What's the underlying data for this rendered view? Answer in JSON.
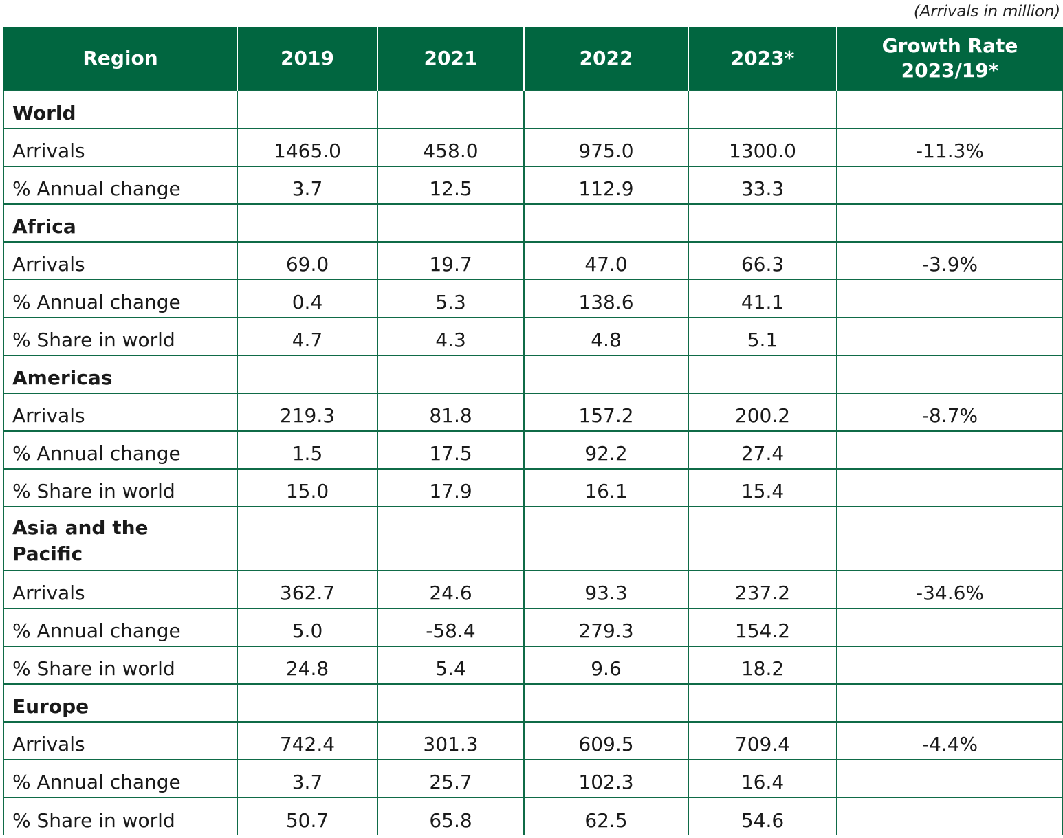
{
  "unit_note": "(Arrivals in million)",
  "header": {
    "region": "Region",
    "y2019": "2019",
    "y2021": "2021",
    "y2022": "2022",
    "y2023": "2023*",
    "growth_line1": "Growth Rate",
    "growth_line2": "2023/19*"
  },
  "rows": [
    {
      "label": "World",
      "v2019": "",
      "v2021": "",
      "v2022": "",
      "v2023": "",
      "growth": ""
    },
    {
      "label": "Arrivals",
      "v2019": "1465.0",
      "v2021": "458.0",
      "v2022": "975.0",
      "v2023": "1300.0",
      "growth": "-11.3%"
    },
    {
      "label": "% Annual change",
      "v2019": "3.7",
      "v2021": "12.5",
      "v2022": "112.9",
      "v2023": "33.3",
      "growth": ""
    },
    {
      "label": "Africa",
      "v2019": "",
      "v2021": "",
      "v2022": "",
      "v2023": "",
      "growth": ""
    },
    {
      "label": "Arrivals",
      "v2019": "69.0",
      "v2021": "19.7",
      "v2022": "47.0",
      "v2023": "66.3",
      "growth": "-3.9%"
    },
    {
      "label": "% Annual change",
      "v2019": "0.4",
      "v2021": "5.3",
      "v2022": "138.6",
      "v2023": "41.1",
      "growth": ""
    },
    {
      "label": "% Share in world",
      "v2019": "4.7",
      "v2021": "4.3",
      "v2022": "4.8",
      "v2023": "5.1",
      "growth": ""
    },
    {
      "label": "Americas",
      "v2019": "",
      "v2021": "",
      "v2022": "",
      "v2023": "",
      "growth": ""
    },
    {
      "label": "Arrivals",
      "v2019": "219.3",
      "v2021": "81.8",
      "v2022": "157.2",
      "v2023": "200.2",
      "growth": "-8.7%"
    },
    {
      "label": "% Annual change",
      "v2019": "1.5",
      "v2021": "17.5",
      "v2022": "92.2",
      "v2023": "27.4",
      "growth": ""
    },
    {
      "label": "% Share in world",
      "v2019": "15.0",
      "v2021": "17.9",
      "v2022": "16.1",
      "v2023": "15.4",
      "growth": ""
    },
    {
      "label_line1": "Asia and the",
      "label_line2": "Pacific",
      "v2019": "",
      "v2021": "",
      "v2022": "",
      "v2023": "",
      "growth": ""
    },
    {
      "label": "Arrivals",
      "v2019": "362.7",
      "v2021": "24.6",
      "v2022": "93.3",
      "v2023": "237.2",
      "growth": "-34.6%"
    },
    {
      "label": "% Annual change",
      "v2019": "5.0",
      "v2021": "-58.4",
      "v2022": "279.3",
      "v2023": "154.2",
      "growth": ""
    },
    {
      "label": "% Share in world",
      "v2019": "24.8",
      "v2021": "5.4",
      "v2022": "9.6",
      "v2023": "18.2",
      "growth": ""
    },
    {
      "label": "Europe",
      "v2019": "",
      "v2021": "",
      "v2022": "",
      "v2023": "",
      "growth": ""
    },
    {
      "label": "Arrivals",
      "v2019": "742.4",
      "v2021": "301.3",
      "v2022": "609.5",
      "v2023": "709.4",
      "growth": "-4.4%"
    },
    {
      "label": "% Annual change",
      "v2019": "3.7",
      "v2021": "25.7",
      "v2022": "102.3",
      "v2023": "16.4",
      "growth": ""
    },
    {
      "label": "% Share in world",
      "v2019": "50.7",
      "v2021": "65.8",
      "v2022": "62.5",
      "v2023": "54.6",
      "growth": ""
    }
  ],
  "colors": {
    "header_bg": "#016640",
    "header_text": "#ffffff",
    "grid": "#0f6b47"
  }
}
